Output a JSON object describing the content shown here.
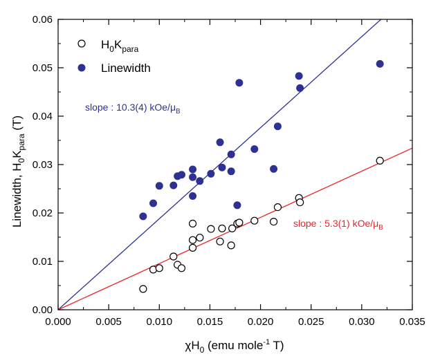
{
  "chart_data": {
    "type": "scatter",
    "xlabel": "χH0 (emu mole-1 T)",
    "ylabel": "Linewidth, H0Kpara (T)",
    "xlim": [
      0.0,
      0.035
    ],
    "ylim": [
      0.0,
      0.06
    ],
    "x_ticks": [
      "0.000",
      "0.005",
      "0.010",
      "0.015",
      "0.020",
      "0.025",
      "0.030",
      "0.035"
    ],
    "y_ticks": [
      "0.00",
      "0.01",
      "0.02",
      "0.03",
      "0.04",
      "0.05",
      "0.06"
    ],
    "legend_position": "top-left",
    "grid": false,
    "series": [
      {
        "name": "H0Kpara",
        "marker": "open-circle",
        "color": "#000000",
        "points": [
          [
            0.0084,
            0.0043
          ],
          [
            0.0094,
            0.0083
          ],
          [
            0.01,
            0.0086
          ],
          [
            0.0114,
            0.011
          ],
          [
            0.0118,
            0.0093
          ],
          [
            0.0122,
            0.0086
          ],
          [
            0.0133,
            0.0178
          ],
          [
            0.0133,
            0.0144
          ],
          [
            0.0133,
            0.0128
          ],
          [
            0.014,
            0.0149
          ],
          [
            0.0151,
            0.0167
          ],
          [
            0.016,
            0.0141
          ],
          [
            0.0162,
            0.0168
          ],
          [
            0.0171,
            0.0133
          ],
          [
            0.0172,
            0.0168
          ],
          [
            0.0177,
            0.0178
          ],
          [
            0.0179,
            0.018
          ],
          [
            0.0194,
            0.0184
          ],
          [
            0.0213,
            0.0182
          ],
          [
            0.0217,
            0.0212
          ],
          [
            0.0238,
            0.0231
          ],
          [
            0.0239,
            0.0222
          ],
          [
            0.0318,
            0.0308
          ]
        ]
      },
      {
        "name": "Linewidth",
        "marker": "filled-circle",
        "color": "#2e3192",
        "points": [
          [
            0.0084,
            0.0193
          ],
          [
            0.0094,
            0.022
          ],
          [
            0.01,
            0.0256
          ],
          [
            0.0114,
            0.0257
          ],
          [
            0.0118,
            0.0276
          ],
          [
            0.0122,
            0.0279
          ],
          [
            0.0133,
            0.029
          ],
          [
            0.0133,
            0.0274
          ],
          [
            0.0133,
            0.0235
          ],
          [
            0.014,
            0.0266
          ],
          [
            0.0151,
            0.0281
          ],
          [
            0.016,
            0.0346
          ],
          [
            0.0162,
            0.0294
          ],
          [
            0.0171,
            0.0321
          ],
          [
            0.0171,
            0.0286
          ],
          [
            0.0177,
            0.0216
          ],
          [
            0.0179,
            0.0469
          ],
          [
            0.0194,
            0.0332
          ],
          [
            0.0213,
            0.0291
          ],
          [
            0.0217,
            0.0379
          ],
          [
            0.0238,
            0.0483
          ],
          [
            0.0239,
            0.0458
          ],
          [
            0.0318,
            0.0508
          ]
        ]
      }
    ],
    "fit_lines": [
      {
        "color": "#2e3192",
        "x": [
          0.0,
          0.0319
        ],
        "y": [
          0.0,
          0.06
        ]
      },
      {
        "color": "#e8262a",
        "x": [
          0.0,
          0.035
        ],
        "y": [
          0.0,
          0.0334
        ]
      }
    ],
    "annotations": [
      {
        "text": "slope : 10.3(4) kOe/μB",
        "color": "#2e3192"
      },
      {
        "text": "slope : 5.3(1) kOe/μB",
        "color": "#e8262a"
      }
    ]
  }
}
